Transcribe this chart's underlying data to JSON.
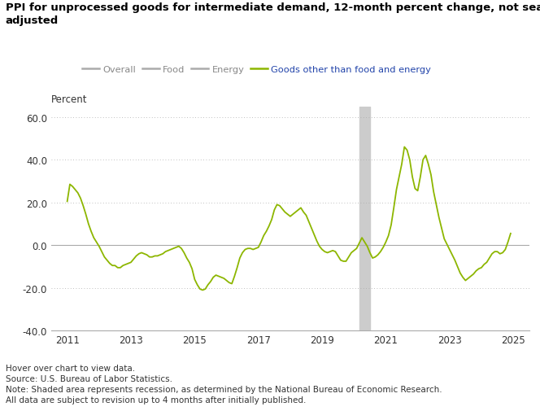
{
  "title": "PPI for unprocessed goods for intermediate demand, 12-month percent change, not seasonally\nadjusted",
  "ylabel": "Percent",
  "legend_entries": [
    "Overall",
    "Food",
    "Energy",
    "Goods other than food and energy"
  ],
  "legend_line_colors": [
    "#aaaaaa",
    "#aaaaaa",
    "#aaaaaa",
    "#8db600"
  ],
  "legend_text_colors": [
    "#888888",
    "#888888",
    "#888888",
    "#2244aa"
  ],
  "line_color": "#8db600",
  "recession_color": "#cccccc",
  "recession_start": 2020.167,
  "recession_end": 2020.5,
  "background_color": "#ffffff",
  "grid_color": "#aaaaaa",
  "ylim": [
    -40.0,
    65.0
  ],
  "yticks": [
    -40.0,
    -20.0,
    0.0,
    20.0,
    40.0,
    60.0
  ],
  "xlim_start": 2010.5,
  "xlim_end": 2025.5,
  "xticks": [
    2011,
    2013,
    2015,
    2017,
    2019,
    2021,
    2023,
    2025
  ],
  "footer_lines": [
    "Hover over chart to view data.",
    "Source: U.S. Bureau of Labor Statistics.",
    "Note: Shaded area represents recession, as determined by the National Bureau of Economic Research.",
    "All data are subject to revision up to 4 months after initially published."
  ],
  "data": {
    "dates": [
      2011.0,
      2011.083,
      2011.167,
      2011.25,
      2011.333,
      2011.417,
      2011.5,
      2011.583,
      2011.667,
      2011.75,
      2011.833,
      2011.917,
      2012.0,
      2012.083,
      2012.167,
      2012.25,
      2012.333,
      2012.417,
      2012.5,
      2012.583,
      2012.667,
      2012.75,
      2012.833,
      2012.917,
      2013.0,
      2013.083,
      2013.167,
      2013.25,
      2013.333,
      2013.417,
      2013.5,
      2013.583,
      2013.667,
      2013.75,
      2013.833,
      2013.917,
      2014.0,
      2014.083,
      2014.167,
      2014.25,
      2014.333,
      2014.417,
      2014.5,
      2014.583,
      2014.667,
      2014.75,
      2014.833,
      2014.917,
      2015.0,
      2015.083,
      2015.167,
      2015.25,
      2015.333,
      2015.417,
      2015.5,
      2015.583,
      2015.667,
      2015.75,
      2015.833,
      2015.917,
      2016.0,
      2016.083,
      2016.167,
      2016.25,
      2016.333,
      2016.417,
      2016.5,
      2016.583,
      2016.667,
      2016.75,
      2016.833,
      2016.917,
      2017.0,
      2017.083,
      2017.167,
      2017.25,
      2017.333,
      2017.417,
      2017.5,
      2017.583,
      2017.667,
      2017.75,
      2017.833,
      2017.917,
      2018.0,
      2018.083,
      2018.167,
      2018.25,
      2018.333,
      2018.417,
      2018.5,
      2018.583,
      2018.667,
      2018.75,
      2018.833,
      2018.917,
      2019.0,
      2019.083,
      2019.167,
      2019.25,
      2019.333,
      2019.417,
      2019.5,
      2019.583,
      2019.667,
      2019.75,
      2019.833,
      2019.917,
      2020.0,
      2020.083,
      2020.167,
      2020.25,
      2020.333,
      2020.417,
      2020.5,
      2020.583,
      2020.667,
      2020.75,
      2020.833,
      2020.917,
      2021.0,
      2021.083,
      2021.167,
      2021.25,
      2021.333,
      2021.417,
      2021.5,
      2021.583,
      2021.667,
      2021.75,
      2021.833,
      2021.917,
      2022.0,
      2022.083,
      2022.167,
      2022.25,
      2022.333,
      2022.417,
      2022.5,
      2022.583,
      2022.667,
      2022.75,
      2022.833,
      2022.917,
      2023.0,
      2023.083,
      2023.167,
      2023.25,
      2023.333,
      2023.417,
      2023.5,
      2023.583,
      2023.667,
      2023.75,
      2023.833,
      2023.917,
      2024.0,
      2024.083,
      2024.167,
      2024.25,
      2024.333,
      2024.417,
      2024.5,
      2024.583,
      2024.667,
      2024.75,
      2024.833,
      2024.917
    ],
    "values": [
      20.5,
      28.5,
      27.5,
      26.0,
      24.5,
      22.0,
      18.5,
      14.5,
      10.0,
      6.5,
      3.5,
      1.5,
      -0.5,
      -3.0,
      -5.5,
      -7.0,
      -8.5,
      -9.5,
      -9.5,
      -10.5,
      -10.5,
      -9.5,
      -9.0,
      -8.5,
      -8.0,
      -6.5,
      -5.0,
      -4.0,
      -3.5,
      -4.0,
      -4.5,
      -5.5,
      -5.5,
      -5.0,
      -5.0,
      -4.5,
      -4.0,
      -3.0,
      -2.5,
      -2.0,
      -1.5,
      -1.0,
      -0.5,
      -1.5,
      -3.5,
      -6.0,
      -8.0,
      -11.0,
      -16.0,
      -18.5,
      -20.5,
      -21.0,
      -20.5,
      -18.5,
      -17.0,
      -15.0,
      -14.0,
      -14.5,
      -15.0,
      -15.5,
      -16.5,
      -17.5,
      -18.0,
      -14.5,
      -10.5,
      -6.0,
      -3.5,
      -2.0,
      -1.5,
      -1.5,
      -2.0,
      -1.5,
      -1.0,
      1.5,
      4.5,
      6.5,
      9.0,
      12.0,
      16.5,
      19.0,
      18.5,
      17.0,
      15.5,
      14.5,
      13.5,
      14.5,
      15.5,
      16.5,
      17.5,
      15.5,
      14.0,
      11.0,
      8.0,
      5.0,
      2.0,
      -0.5,
      -2.0,
      -3.0,
      -3.5,
      -3.0,
      -2.5,
      -3.0,
      -5.0,
      -7.0,
      -7.5,
      -7.5,
      -5.5,
      -3.5,
      -2.5,
      -1.5,
      1.0,
      3.5,
      1.5,
      -0.5,
      -3.5,
      -6.0,
      -5.5,
      -4.5,
      -3.0,
      -1.0,
      1.5,
      4.5,
      9.5,
      17.5,
      26.0,
      32.0,
      38.0,
      46.0,
      44.5,
      40.0,
      32.0,
      26.5,
      25.5,
      32.0,
      40.0,
      42.0,
      38.0,
      33.0,
      25.0,
      19.0,
      13.0,
      8.0,
      3.0,
      0.5,
      -2.0,
      -4.5,
      -7.0,
      -10.0,
      -13.0,
      -15.0,
      -16.5,
      -15.5,
      -14.5,
      -13.5,
      -12.0,
      -11.0,
      -10.5,
      -9.0,
      -8.0,
      -6.0,
      -4.0,
      -3.0,
      -3.0,
      -4.0,
      -3.5,
      -2.0,
      1.5,
      5.5
    ]
  }
}
